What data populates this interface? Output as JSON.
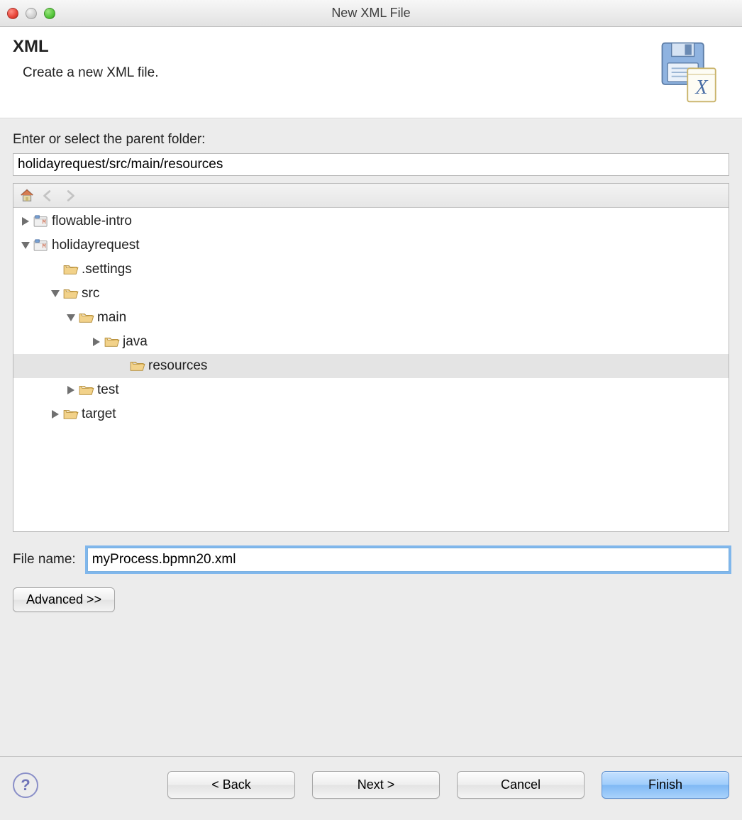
{
  "window": {
    "title": "New XML File"
  },
  "banner": {
    "heading": "XML",
    "subtitle": "Create a new XML file."
  },
  "form": {
    "parent_folder_label": "Enter or select the parent folder:",
    "parent_folder_value": "holidayrequest/src/main/resources",
    "file_name_label": "File name:",
    "file_name_value": "myProcess.bpmn20.xml",
    "advanced_label": "Advanced >>"
  },
  "tree": {
    "items": [
      {
        "label": "flowable-intro",
        "icon": "project",
        "indent": 1,
        "disclosure": "right",
        "selected": false
      },
      {
        "label": "holidayrequest",
        "icon": "project",
        "indent": 1,
        "disclosure": "down",
        "selected": false
      },
      {
        "label": ".settings",
        "icon": "folder-open",
        "indent": 2,
        "disclosure": "none",
        "selected": false
      },
      {
        "label": "src",
        "icon": "folder-open",
        "indent": 2,
        "disclosure": "down",
        "selected": false
      },
      {
        "label": "main",
        "icon": "folder-open",
        "indent": 3,
        "disclosure": "down",
        "selected": false
      },
      {
        "label": "java",
        "icon": "folder-open",
        "indent": 4,
        "disclosure": "right",
        "selected": false
      },
      {
        "label": "resources",
        "icon": "folder-open",
        "indent": 5,
        "disclosure": "none",
        "selected": true
      },
      {
        "label": "test",
        "icon": "folder-open",
        "indent": 3,
        "disclosure": "right",
        "selected": false
      },
      {
        "label": "target",
        "icon": "folder-open",
        "indent": 2,
        "disclosure": "right",
        "selected": false
      }
    ]
  },
  "footer": {
    "back": "< Back",
    "next": "Next >",
    "cancel": "Cancel",
    "finish": "Finish"
  },
  "icons": {
    "project": "maven-project-icon",
    "folder_open": "folder-open-icon"
  },
  "colors": {
    "background": "#ececec",
    "selection": "#e4e4e4",
    "focus_ring": "#6daeec",
    "default_button_start": "#c5e1ff",
    "default_button_end": "#7fb8f4"
  }
}
